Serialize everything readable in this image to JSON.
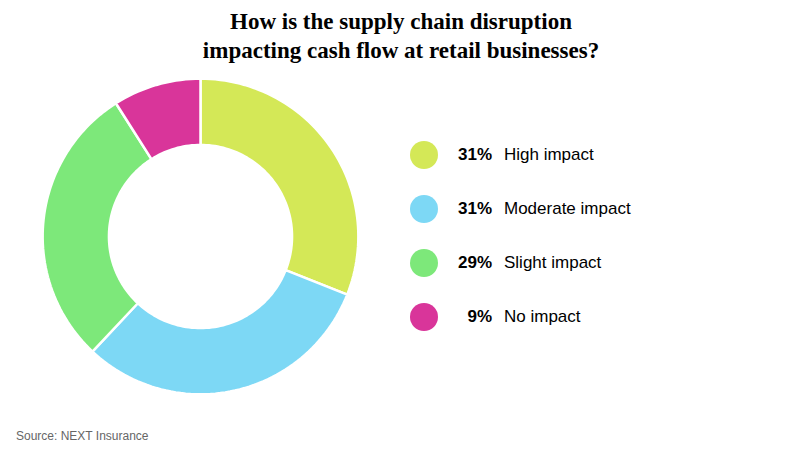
{
  "chart_data": {
    "type": "donut",
    "title": "How is the supply chain disruption\nimpacting cash flow at retail businesses?",
    "categories": [
      "High impact",
      "Moderate impact",
      "Slight impact",
      "No impact"
    ],
    "values": [
      31,
      31,
      29,
      9
    ],
    "value_labels": [
      "31%",
      "31%",
      "29%",
      "9%"
    ],
    "colors": [
      "#d4e857",
      "#7dd8f5",
      "#7de87a",
      "#d9359a"
    ],
    "legend": "right",
    "annotations": [
      "Source: NEXT Insurance"
    ]
  }
}
